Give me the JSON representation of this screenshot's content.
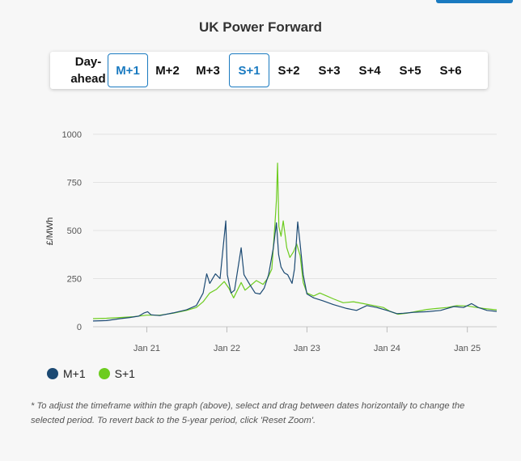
{
  "title": "UK Power Forward",
  "tabs": [
    {
      "label": "Day-ahead",
      "active": false
    },
    {
      "label": "M+1",
      "active": true
    },
    {
      "label": "M+2",
      "active": false
    },
    {
      "label": "M+3",
      "active": false
    },
    {
      "label": "S+1",
      "active": true
    },
    {
      "label": "S+2",
      "active": false
    },
    {
      "label": "S+3",
      "active": false
    },
    {
      "label": "S+4",
      "active": false
    },
    {
      "label": "S+5",
      "active": false
    },
    {
      "label": "S+6",
      "active": false
    }
  ],
  "colors": {
    "accent": "#1a7ac0",
    "m1": "#1c4a73",
    "s1": "#6dcc1f"
  },
  "note": "* To adjust the timeframe within the graph (above), select and drag between dates horizontally to change the selected period. To revert back to the 5-year period, click 'Reset Zoom'.",
  "chart_data": {
    "type": "line",
    "title": "",
    "xlabel": "",
    "ylabel": "£/MWh",
    "ylim": [
      0,
      1000
    ],
    "yticks": [
      0,
      250,
      500,
      750,
      1000
    ],
    "xlim": [
      "2020-05-01",
      "2025-05-15"
    ],
    "xticks": [
      {
        "label": "Jan 21",
        "date": "2021-01-01"
      },
      {
        "label": "Jan 22",
        "date": "2022-01-01"
      },
      {
        "label": "Jan 23",
        "date": "2023-01-01"
      },
      {
        "label": "Jan 24",
        "date": "2024-01-01"
      },
      {
        "label": "Jan 25",
        "date": "2025-01-01"
      }
    ],
    "grid": true,
    "legend_position": "bottom-left",
    "series": [
      {
        "name": "M+1",
        "points": [
          [
            "2020-05-01",
            30
          ],
          [
            "2020-07-01",
            32
          ],
          [
            "2020-09-01",
            42
          ],
          [
            "2020-10-15",
            48
          ],
          [
            "2020-11-25",
            55
          ],
          [
            "2020-12-20",
            72
          ],
          [
            "2021-01-05",
            78
          ],
          [
            "2021-01-20",
            62
          ],
          [
            "2021-03-01",
            58
          ],
          [
            "2021-05-01",
            72
          ],
          [
            "2021-07-01",
            88
          ],
          [
            "2021-08-15",
            110
          ],
          [
            "2021-09-15",
            175
          ],
          [
            "2021-10-01",
            275
          ],
          [
            "2021-10-15",
            225
          ],
          [
            "2021-11-10",
            275
          ],
          [
            "2021-12-01",
            250
          ],
          [
            "2021-12-20",
            470
          ],
          [
            "2021-12-27",
            550
          ],
          [
            "2022-01-03",
            270
          ],
          [
            "2022-01-20",
            175
          ],
          [
            "2022-02-05",
            190
          ],
          [
            "2022-03-07",
            410
          ],
          [
            "2022-03-20",
            270
          ],
          [
            "2022-04-15",
            220
          ],
          [
            "2022-05-10",
            175
          ],
          [
            "2022-06-01",
            170
          ],
          [
            "2022-06-20",
            200
          ],
          [
            "2022-07-10",
            270
          ],
          [
            "2022-08-01",
            410
          ],
          [
            "2022-08-15",
            540
          ],
          [
            "2022-08-25",
            375
          ],
          [
            "2022-09-05",
            310
          ],
          [
            "2022-09-20",
            280
          ],
          [
            "2022-10-05",
            270
          ],
          [
            "2022-10-25",
            225
          ],
          [
            "2022-11-05",
            300
          ],
          [
            "2022-11-20",
            545
          ],
          [
            "2022-12-01",
            430
          ],
          [
            "2022-12-15",
            270
          ],
          [
            "2023-01-01",
            170
          ],
          [
            "2023-02-01",
            150
          ],
          [
            "2023-03-15",
            135
          ],
          [
            "2023-05-01",
            115
          ],
          [
            "2023-07-01",
            95
          ],
          [
            "2023-08-15",
            85
          ],
          [
            "2023-10-01",
            110
          ],
          [
            "2023-11-15",
            100
          ],
          [
            "2024-01-01",
            85
          ],
          [
            "2024-02-15",
            68
          ],
          [
            "2024-03-15",
            70
          ],
          [
            "2024-05-01",
            75
          ],
          [
            "2024-07-01",
            78
          ],
          [
            "2024-09-01",
            85
          ],
          [
            "2024-11-01",
            105
          ],
          [
            "2024-12-15",
            100
          ],
          [
            "2025-01-20",
            120
          ],
          [
            "2025-02-20",
            100
          ],
          [
            "2025-04-01",
            85
          ],
          [
            "2025-05-15",
            80
          ]
        ]
      },
      {
        "name": "S+1",
        "points": [
          [
            "2020-05-01",
            42
          ],
          [
            "2020-07-01",
            44
          ],
          [
            "2020-09-01",
            48
          ],
          [
            "2020-11-01",
            52
          ],
          [
            "2021-01-01",
            60
          ],
          [
            "2021-03-01",
            60
          ],
          [
            "2021-05-01",
            70
          ],
          [
            "2021-07-01",
            85
          ],
          [
            "2021-08-15",
            100
          ],
          [
            "2021-09-15",
            130
          ],
          [
            "2021-10-15",
            175
          ],
          [
            "2021-11-15",
            195
          ],
          [
            "2021-12-20",
            235
          ],
          [
            "2022-01-10",
            200
          ],
          [
            "2022-02-01",
            150
          ],
          [
            "2022-03-07",
            230
          ],
          [
            "2022-03-25",
            190
          ],
          [
            "2022-04-15",
            210
          ],
          [
            "2022-05-15",
            240
          ],
          [
            "2022-06-15",
            220
          ],
          [
            "2022-07-05",
            250
          ],
          [
            "2022-07-25",
            300
          ],
          [
            "2022-08-08",
            530
          ],
          [
            "2022-08-15",
            660
          ],
          [
            "2022-08-20",
            850
          ],
          [
            "2022-08-26",
            520
          ],
          [
            "2022-09-05",
            470
          ],
          [
            "2022-09-15",
            550
          ],
          [
            "2022-10-01",
            410
          ],
          [
            "2022-10-15",
            360
          ],
          [
            "2022-11-01",
            390
          ],
          [
            "2022-11-15",
            430
          ],
          [
            "2022-12-01",
            370
          ],
          [
            "2022-12-15",
            230
          ],
          [
            "2023-01-01",
            175
          ],
          [
            "2023-02-01",
            160
          ],
          [
            "2023-03-01",
            175
          ],
          [
            "2023-04-01",
            160
          ],
          [
            "2023-05-01",
            145
          ],
          [
            "2023-06-15",
            125
          ],
          [
            "2023-08-01",
            130
          ],
          [
            "2023-09-15",
            120
          ],
          [
            "2023-11-01",
            110
          ],
          [
            "2023-12-15",
            100
          ],
          [
            "2024-01-15",
            80
          ],
          [
            "2024-02-20",
            65
          ],
          [
            "2024-04-01",
            70
          ],
          [
            "2024-05-15",
            80
          ],
          [
            "2024-07-01",
            90
          ],
          [
            "2024-08-15",
            95
          ],
          [
            "2024-10-01",
            100
          ],
          [
            "2024-11-15",
            110
          ],
          [
            "2025-01-01",
            108
          ],
          [
            "2025-02-01",
            102
          ],
          [
            "2025-03-15",
            95
          ],
          [
            "2025-05-15",
            88
          ]
        ]
      }
    ]
  }
}
